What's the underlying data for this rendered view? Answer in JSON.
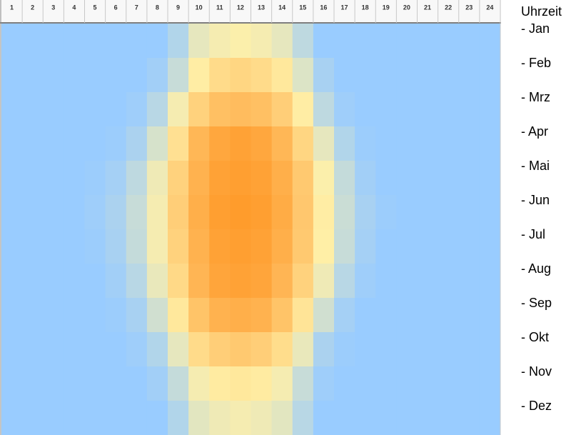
{
  "chart_data": {
    "type": "heatmap",
    "title": "Uhrzeit",
    "x": [
      1,
      2,
      3,
      4,
      5,
      6,
      7,
      8,
      9,
      10,
      11,
      12,
      13,
      14,
      15,
      16,
      17,
      18,
      19,
      20,
      21,
      22,
      23,
      24
    ],
    "y": [
      "- Jan",
      "- Feb",
      "- Mrz",
      "- Apr",
      "- Mai",
      "- Jun",
      "- Jul",
      "- Aug",
      "- Sep",
      "- Okt",
      "- Nov",
      "- Dez"
    ],
    "values": [
      [
        0,
        0,
        0,
        0,
        0,
        0,
        0,
        0,
        8,
        25,
        30,
        32,
        30,
        25,
        12,
        0,
        0,
        0,
        0,
        0,
        0,
        0,
        0,
        0
      ],
      [
        0,
        0,
        0,
        0,
        0,
        0,
        0,
        3,
        15,
        35,
        45,
        48,
        45,
        38,
        22,
        5,
        0,
        0,
        0,
        0,
        0,
        0,
        0,
        0
      ],
      [
        0,
        0,
        0,
        0,
        0,
        0,
        2,
        10,
        30,
        50,
        60,
        62,
        60,
        52,
        35,
        12,
        2,
        0,
        0,
        0,
        0,
        0,
        0,
        0
      ],
      [
        0,
        0,
        0,
        0,
        0,
        1,
        6,
        20,
        42,
        65,
        75,
        78,
        75,
        65,
        48,
        25,
        8,
        1,
        0,
        0,
        0,
        0,
        0,
        0
      ],
      [
        0,
        0,
        0,
        0,
        1,
        4,
        12,
        28,
        50,
        68,
        78,
        80,
        78,
        70,
        55,
        32,
        14,
        3,
        0,
        0,
        0,
        0,
        0,
        0
      ],
      [
        0,
        0,
        0,
        0,
        2,
        6,
        15,
        30,
        52,
        70,
        80,
        82,
        80,
        72,
        56,
        35,
        16,
        5,
        1,
        0,
        0,
        0,
        0,
        0
      ],
      [
        0,
        0,
        0,
        0,
        1,
        5,
        14,
        30,
        50,
        68,
        78,
        80,
        78,
        70,
        55,
        34,
        15,
        4,
        0,
        0,
        0,
        0,
        0,
        0
      ],
      [
        0,
        0,
        0,
        0,
        0,
        3,
        10,
        26,
        46,
        66,
        76,
        78,
        76,
        66,
        50,
        28,
        10,
        2,
        0,
        0,
        0,
        0,
        0,
        0
      ],
      [
        0,
        0,
        0,
        0,
        0,
        1,
        5,
        18,
        38,
        58,
        68,
        70,
        68,
        58,
        40,
        18,
        4,
        0,
        0,
        0,
        0,
        0,
        0,
        0
      ],
      [
        0,
        0,
        0,
        0,
        0,
        0,
        2,
        8,
        25,
        45,
        52,
        55,
        52,
        44,
        26,
        6,
        1,
        0,
        0,
        0,
        0,
        0,
        0,
        0
      ],
      [
        0,
        0,
        0,
        0,
        0,
        0,
        0,
        3,
        14,
        30,
        36,
        38,
        36,
        30,
        15,
        2,
        0,
        0,
        0,
        0,
        0,
        0,
        0,
        0
      ],
      [
        0,
        0,
        0,
        0,
        0,
        0,
        0,
        0,
        8,
        24,
        28,
        30,
        28,
        24,
        10,
        0,
        0,
        0,
        0,
        0,
        0,
        0,
        0,
        0
      ]
    ],
    "zlim": [
      0,
      100
    ],
    "colormap": [
      "#99ccff",
      "#fff0a8",
      "#ffb452",
      "#ff8000"
    ]
  }
}
